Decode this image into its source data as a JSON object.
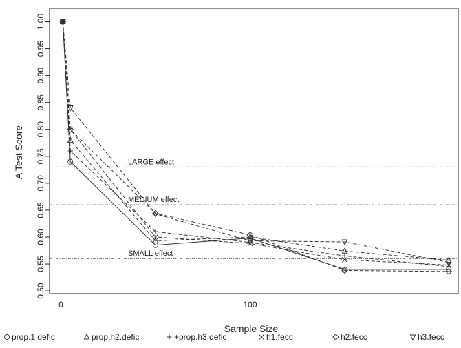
{
  "chart_data": {
    "type": "line",
    "title": "",
    "xlabel": "Sample Size",
    "ylabel": "A Test Score",
    "xlim": [
      -6,
      210
    ],
    "ylim": [
      0.495,
      1.025
    ],
    "x_ticks": [
      0,
      100
    ],
    "y_ticks": [
      0.5,
      0.55,
      0.6,
      0.65,
      0.7,
      0.75,
      0.8,
      0.85,
      0.9,
      0.95,
      1.0
    ],
    "x": [
      1,
      5,
      50,
      100,
      150,
      205
    ],
    "grid": false,
    "legend_position": "bottom",
    "thresholds": [
      {
        "label": "LARGE effect",
        "value": 0.73
      },
      {
        "label": "MEDIUM effect",
        "value": 0.66
      },
      {
        "label": "SMALL effect",
        "value": 0.56
      }
    ],
    "series": [
      {
        "name": "prop.1.defic",
        "marker": "circle",
        "dash": "solid",
        "values": [
          1.0,
          0.74,
          0.585,
          0.598,
          0.54,
          0.54
        ]
      },
      {
        "name": "prop.h2.defic",
        "marker": "triangle-up",
        "dash": "dashed",
        "values": [
          1.0,
          0.78,
          0.593,
          0.6,
          0.574,
          0.557
        ]
      },
      {
        "name": "+prop.h3.defic",
        "marker": "plus",
        "dash": "dashed",
        "values": [
          1.0,
          0.76,
          0.61,
          0.59,
          0.565,
          0.545
        ]
      },
      {
        "name": "h1.fecc",
        "marker": "cross",
        "dash": "dashed",
        "values": [
          1.0,
          0.8,
          0.6,
          0.588,
          0.558,
          0.548
        ]
      },
      {
        "name": "h2.fecc",
        "marker": "diamond",
        "dash": "dashed",
        "values": [
          1.0,
          0.8,
          0.644,
          0.604,
          0.538,
          0.536
        ]
      },
      {
        "name": "h3.fecc",
        "marker": "triangle-down",
        "dash": "dashed",
        "values": [
          1.0,
          0.84,
          0.643,
          0.593,
          0.591,
          0.553
        ]
      }
    ]
  },
  "colors": {
    "series_line": "#333333",
    "threshold_line": "#555555",
    "axis": "#222222"
  }
}
